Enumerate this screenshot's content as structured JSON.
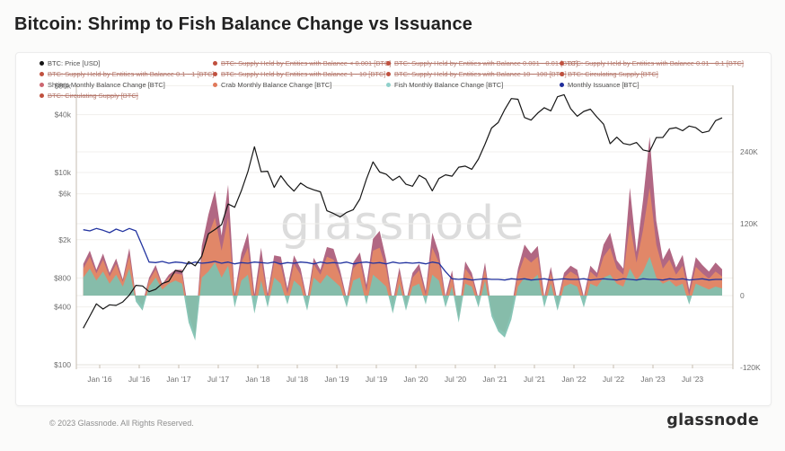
{
  "title": "Bitcoin: Shrimp to Fish Balance Change vs Issuance",
  "watermark": "glassnode",
  "footer": {
    "copyright": "© 2023 Glassnode. All Rights Reserved.",
    "brand": "glassnode"
  },
  "legend": {
    "items": [
      {
        "label": "BTC: Price [USD]",
        "color": "#141414",
        "struck": false
      },
      {
        "label": "BTC: Supply Held by Entities with Balance < 0.001 [BTC]",
        "color": "#c0503e",
        "struck": true
      },
      {
        "label": "BTC: Supply Held by Entities with Balance 0.001 - 0.01 [BTC]",
        "color": "#c0503e",
        "struck": true
      },
      {
        "label": "BTC: Supply Held by Entities with Balance 0.01 - 0.1 [BTC]",
        "color": "#c0503e",
        "struck": true
      },
      {
        "label": "BTC: Supply Held by Entities with Balance 0.1 - 1 [BTC]",
        "color": "#c0503e",
        "struck": true
      },
      {
        "label": "BTC: Supply Held by Entities with Balance 1 - 10 [BTC]",
        "color": "#c0503e",
        "struck": true
      },
      {
        "label": "BTC: Supply Held by Entities with Balance 10 - 100 [BTC]",
        "color": "#c0503e",
        "struck": true
      },
      {
        "label": "BTC: Circulating Supply [BTC]",
        "color": "#c0503e",
        "struck": true
      },
      {
        "label": "Shrimp Monthly Balance Change [BTC]",
        "color": "#cc6670",
        "struck": false
      },
      {
        "label": "Crab Monthly Balance Change [BTC]",
        "color": "#e0795a",
        "struck": false
      },
      {
        "label": "Fish Monthly Balance Change [BTC]",
        "color": "#90d0cb",
        "struck": false
      },
      {
        "label": "Monthly Issuance [BTC]",
        "color": "#1f2d9b",
        "struck": false
      },
      {
        "label": "BTC: Circulating Supply [BTC]",
        "color": "#c0503e",
        "struck": true
      }
    ]
  },
  "chart_data": {
    "type": "mixed-line-stacked-area",
    "title": "Bitcoin: Shrimp to Fish Balance Change vs Issuance",
    "x_start": 2015.7917,
    "x_step": 0.083333,
    "left_axis": {
      "scale": "log",
      "unit": "USD",
      "ticks": [
        {
          "label": "$80k",
          "value": 80000
        },
        {
          "label": "$40k",
          "value": 40000
        },
        {
          "label": "$10k",
          "value": 10000
        },
        {
          "label": "$6k",
          "value": 6000
        },
        {
          "label": "$2k",
          "value": 2000
        },
        {
          "label": "$800",
          "value": 800
        },
        {
          "label": "$400",
          "value": 400
        },
        {
          "label": "$100",
          "value": 100
        }
      ]
    },
    "right_axis": {
      "scale": "linear",
      "unit": "BTC",
      "ticks": [
        {
          "label": "240K",
          "value": 240000
        },
        {
          "label": "120K",
          "value": 120000
        },
        {
          "label": "0",
          "value": 0
        },
        {
          "label": "-120K",
          "value": -120000
        }
      ]
    },
    "x_axis": {
      "ticks": [
        {
          "label": "Jan '16",
          "year": 2016.0
        },
        {
          "label": "Jul '16",
          "year": 2016.5
        },
        {
          "label": "Jan '17",
          "year": 2017.0
        },
        {
          "label": "Jul '17",
          "year": 2017.5
        },
        {
          "label": "Jan '18",
          "year": 2018.0
        },
        {
          "label": "Jul '18",
          "year": 2018.5
        },
        {
          "label": "Jan '19",
          "year": 2019.0
        },
        {
          "label": "Jul '19",
          "year": 2019.5
        },
        {
          "label": "Jan '20",
          "year": 2020.0
        },
        {
          "label": "Jul '20",
          "year": 2020.5
        },
        {
          "label": "Jan '21",
          "year": 2021.0
        },
        {
          "label": "Jul '21",
          "year": 2021.5
        },
        {
          "label": "Jan '22",
          "year": 2022.0
        },
        {
          "label": "Jul '22",
          "year": 2022.5
        },
        {
          "label": "Jan '23",
          "year": 2023.0
        },
        {
          "label": "Jul '23",
          "year": 2023.5
        }
      ]
    },
    "areas": [
      {
        "name": "Fish Monthly Balance Change [BTC]",
        "color": "#7ec0b0",
        "values": [
          30000,
          45000,
          25000,
          40000,
          20000,
          35000,
          15000,
          45000,
          -10000,
          -25000,
          15000,
          30000,
          10000,
          20000,
          25000,
          20000,
          -45000,
          -75000,
          30000,
          40000,
          55000,
          30000,
          50000,
          -20000,
          25000,
          35000,
          -30000,
          25000,
          -20000,
          30000,
          20000,
          -15000,
          25000,
          15000,
          -25000,
          30000,
          20000,
          35000,
          25000,
          15000,
          -20000,
          25000,
          30000,
          -15000,
          35000,
          25000,
          15000,
          -30000,
          20000,
          -25000,
          15000,
          20000,
          -15000,
          35000,
          25000,
          -20000,
          15000,
          -45000,
          20000,
          15000,
          -20000,
          25000,
          -35000,
          -60000,
          -70000,
          -40000,
          15000,
          30000,
          25000,
          35000,
          -20000,
          20000,
          -25000,
          15000,
          20000,
          15000,
          -20000,
          20000,
          15000,
          30000,
          35000,
          20000,
          15000,
          45000,
          25000,
          40000,
          65000,
          30000,
          20000,
          25000,
          15000,
          20000,
          -15000,
          20000,
          15000,
          10000,
          15000,
          12000
        ]
      },
      {
        "name": "Crab Monthly Balance Change [BTC]",
        "color": "#e58a66",
        "values": [
          15000,
          20000,
          12000,
          20000,
          12000,
          18000,
          8000,
          22000,
          5000,
          8000,
          10000,
          14000,
          6000,
          10000,
          12000,
          15000,
          12000,
          10000,
          35000,
          60000,
          75000,
          45000,
          80000,
          15000,
          30000,
          45000,
          20000,
          35000,
          15000,
          25000,
          30000,
          18000,
          28000,
          20000,
          12000,
          22000,
          15000,
          30000,
          35000,
          18000,
          10000,
          20000,
          28000,
          22000,
          40000,
          55000,
          30000,
          12000,
          18000,
          10000,
          15000,
          22000,
          15000,
          45000,
          30000,
          12000,
          18000,
          8000,
          25000,
          15000,
          10000,
          20000,
          8000,
          5000,
          8000,
          12000,
          20000,
          35000,
          30000,
          30000,
          12000,
          18000,
          10000,
          15000,
          20000,
          18000,
          12000,
          20000,
          15000,
          35000,
          45000,
          25000,
          20000,
          75000,
          30000,
          70000,
          115000,
          55000,
          25000,
          35000,
          20000,
          30000,
          15000,
          28000,
          22000,
          18000,
          25000,
          20000
        ]
      },
      {
        "name": "Shrimp Monthly Balance Change [BTC]",
        "color": "#aa5a78",
        "values": [
          8000,
          10000,
          6000,
          10000,
          6000,
          9000,
          4000,
          12000,
          3000,
          4000,
          5000,
          7000,
          3000,
          5000,
          6000,
          8000,
          6000,
          5000,
          18000,
          35000,
          45000,
          25000,
          55000,
          8000,
          15000,
          25000,
          12000,
          20000,
          8000,
          12000,
          15000,
          9000,
          14000,
          10000,
          6000,
          11000,
          8000,
          16000,
          18000,
          9000,
          5000,
          10000,
          14000,
          11000,
          20000,
          28000,
          15000,
          6000,
          9000,
          5000,
          8000,
          11000,
          8000,
          25000,
          16000,
          7000,
          9000,
          4000,
          12000,
          8000,
          5000,
          10000,
          4000,
          3000,
          4000,
          6000,
          10000,
          20000,
          15000,
          18000,
          6000,
          10000,
          5000,
          8000,
          10000,
          10000,
          6000,
          10000,
          8000,
          20000,
          25000,
          14000,
          10000,
          60000,
          18000,
          50000,
          85000,
          40000,
          15000,
          20000,
          12000,
          18000,
          10000,
          16000,
          14000,
          12000,
          15000,
          12000
        ]
      }
    ],
    "lines": [
      {
        "name": "Monthly Issuance [BTC]",
        "axis": "right",
        "color": "#2334a0",
        "width": 1.3,
        "values": [
          110000,
          108000,
          112000,
          109000,
          105000,
          111000,
          107000,
          112000,
          108000,
          82000,
          56000,
          55000,
          57000,
          54000,
          56000,
          55000,
          53000,
          56000,
          54000,
          55000,
          57000,
          54000,
          56000,
          53000,
          55000,
          54000,
          56000,
          55000,
          54000,
          56000,
          53000,
          55000,
          54000,
          56000,
          55000,
          53000,
          56000,
          54000,
          55000,
          54000,
          56000,
          53000,
          55000,
          56000,
          54000,
          55000,
          53000,
          56000,
          54000,
          55000,
          54000,
          55000,
          53000,
          56000,
          54000,
          40000,
          28000,
          27000,
          28000,
          26000,
          27000,
          28000,
          27000,
          27000,
          26000,
          28000,
          27000,
          28000,
          26000,
          27000,
          28000,
          26000,
          27000,
          28000,
          27000,
          27000,
          28000,
          26000,
          27000,
          28000,
          27000,
          26000,
          28000,
          27000,
          26000,
          28000,
          27000,
          27000,
          26000,
          28000,
          27000,
          28000,
          26000,
          27000,
          28000,
          26000,
          27000,
          27000
        ]
      },
      {
        "name": "BTC: Price [USD]",
        "axis": "left",
        "color": "#161616",
        "width": 1.2,
        "values": [
          240,
          320,
          430,
          380,
          420,
          415,
          450,
          530,
          670,
          660,
          575,
          610,
          700,
          740,
          960,
          920,
          1180,
          1070,
          1350,
          2300,
          2550,
          2870,
          4700,
          4350,
          6450,
          10200,
          18500,
          10200,
          10300,
          7000,
          9250,
          7500,
          6400,
          7750,
          7000,
          6600,
          6300,
          4000,
          3750,
          3450,
          3850,
          4100,
          5300,
          8550,
          12900,
          10100,
          9600,
          8300,
          9150,
          7550,
          7200,
          9350,
          8550,
          6450,
          8650,
          9450,
          9150,
          11350,
          11650,
          10800,
          13800,
          19700,
          29000,
          33100,
          45200,
          58800,
          57750,
          37300,
          35050,
          41500,
          47150,
          43800,
          61300,
          64400,
          46200,
          38500,
          43200,
          45550,
          37650,
          31800,
          19950,
          23300,
          20050,
          19400,
          20500,
          17150,
          16550,
          23100,
          23150,
          28450,
          29250,
          27200,
          30450,
          29250,
          25950,
          26950,
          34650,
          37000
        ]
      }
    ]
  }
}
